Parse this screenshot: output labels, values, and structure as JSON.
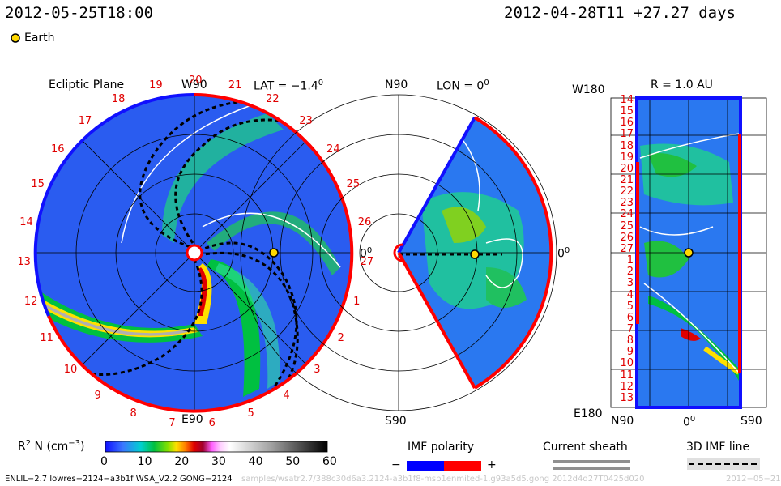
{
  "header": {
    "left_timestamp": "2012-05-25T18:00",
    "right_timestamp": "2012-04-28T11 +27.27 days"
  },
  "legend": {
    "earth_label": "Earth",
    "earth_color": "#ffd800"
  },
  "panels": {
    "ecliptic": {
      "title": "Ecliptic Plane",
      "top_label": "W90",
      "bottom_label": "E90",
      "lat_label": "LAT = −1.4",
      "lat_sup": "0",
      "right_label": "0",
      "right_sup": "0",
      "carrington_labels": [
        "20",
        "21",
        "22",
        "23",
        "24",
        "25",
        "26",
        "27",
        "1",
        "2",
        "3",
        "4",
        "5",
        "6",
        "7",
        "8",
        "9",
        "10",
        "11",
        "12",
        "13",
        "14",
        "15",
        "16",
        "17",
        "18",
        "19"
      ]
    },
    "meridional": {
      "top_label": "N90",
      "bottom_label": "S90",
      "lon_label": "LON = 0",
      "lon_sup": "0",
      "right_label": "0",
      "right_sup": "0"
    },
    "radial": {
      "top_label": "W180",
      "bottom_label": "E180",
      "r_label": "R = 1.0 AU",
      "x_left": "N90",
      "x_mid": "0",
      "x_mid_sup": "0",
      "x_right": "S90",
      "y_labels": [
        "14",
        "15",
        "16",
        "17",
        "18",
        "19",
        "20",
        "21",
        "22",
        "23",
        "24",
        "25",
        "26",
        "27",
        "1",
        "2",
        "3",
        "4",
        "5",
        "6",
        "7",
        "8",
        "9",
        "10",
        "11",
        "12",
        "13"
      ]
    }
  },
  "colorbar": {
    "label": "R",
    "label_sup": "2",
    "label_rest": " N (cm",
    "label_unit_sup": "−3",
    "label_end": ")",
    "ticks": [
      "0",
      "10",
      "20",
      "30",
      "40",
      "50",
      "60"
    ]
  },
  "keys": {
    "imf_polarity": "IMF polarity",
    "minus": "−",
    "plus": "+",
    "current_sheath": "Current sheath",
    "imf_line": "3D IMF line",
    "colors": {
      "negative": "#0000ff",
      "positive": "#ff0000"
    }
  },
  "footer": {
    "model_info": "ENLIL−2.7 lowres−2124−a3b1f WSA_V2.2 GONG−2124",
    "path_info": "samples/wsatr2.7/388c30d6a3.2124-a3b1f8-msp1enmited-1.g93a5d5.gong 2012d4d27T0425d020",
    "right_info": "2012−05−21"
  }
}
